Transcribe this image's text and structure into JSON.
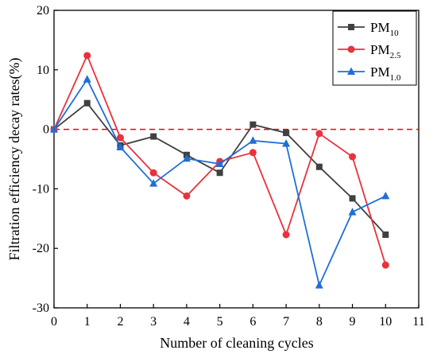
{
  "chart_data": {
    "type": "line",
    "xlabel": "Number of cleaning cycles",
    "ylabel": "Filtration efficiency decay rates(%)",
    "xlim": [
      0,
      11
    ],
    "ylim": [
      -30,
      20
    ],
    "xticks": [
      0,
      1,
      2,
      3,
      4,
      5,
      6,
      7,
      8,
      9,
      10,
      11
    ],
    "yticks": [
      -30,
      -20,
      -10,
      0,
      10,
      20
    ],
    "reference_line": {
      "y": 0,
      "style": "dashed",
      "color": "#ff0000"
    },
    "legend_position": "top-right",
    "grid": false,
    "series": [
      {
        "name": "PM10",
        "label_main": "PM",
        "label_sub": "10",
        "color": "#404040",
        "marker": "square",
        "x": [
          0,
          1,
          2,
          3,
          4,
          5,
          6,
          7,
          8,
          9,
          10
        ],
        "values": [
          0,
          4.4,
          -2.7,
          -1.2,
          -4.3,
          -7.3,
          0.8,
          -0.6,
          -6.3,
          -11.6,
          -17.7
        ]
      },
      {
        "name": "PM2.5",
        "label_main": "PM",
        "label_sub": "2.5",
        "color": "#e8323c",
        "marker": "circle",
        "x": [
          0,
          1,
          2,
          3,
          4,
          5,
          6,
          7,
          8,
          9,
          10
        ],
        "values": [
          0,
          12.4,
          -1.4,
          -7.3,
          -11.2,
          -5.4,
          -3.9,
          -17.7,
          -0.7,
          -4.6,
          -22.8
        ]
      },
      {
        "name": "PM1.0",
        "label_main": "PM",
        "label_sub": "1.0",
        "color": "#1f6fd6",
        "marker": "triangle",
        "x": [
          0,
          1,
          2,
          3,
          4,
          5,
          6,
          7,
          8,
          9,
          10
        ],
        "values": [
          0,
          8.4,
          -3.0,
          -9.1,
          -4.9,
          -5.8,
          -1.9,
          -2.4,
          -26.2,
          -13.9,
          -11.2
        ]
      }
    ]
  }
}
